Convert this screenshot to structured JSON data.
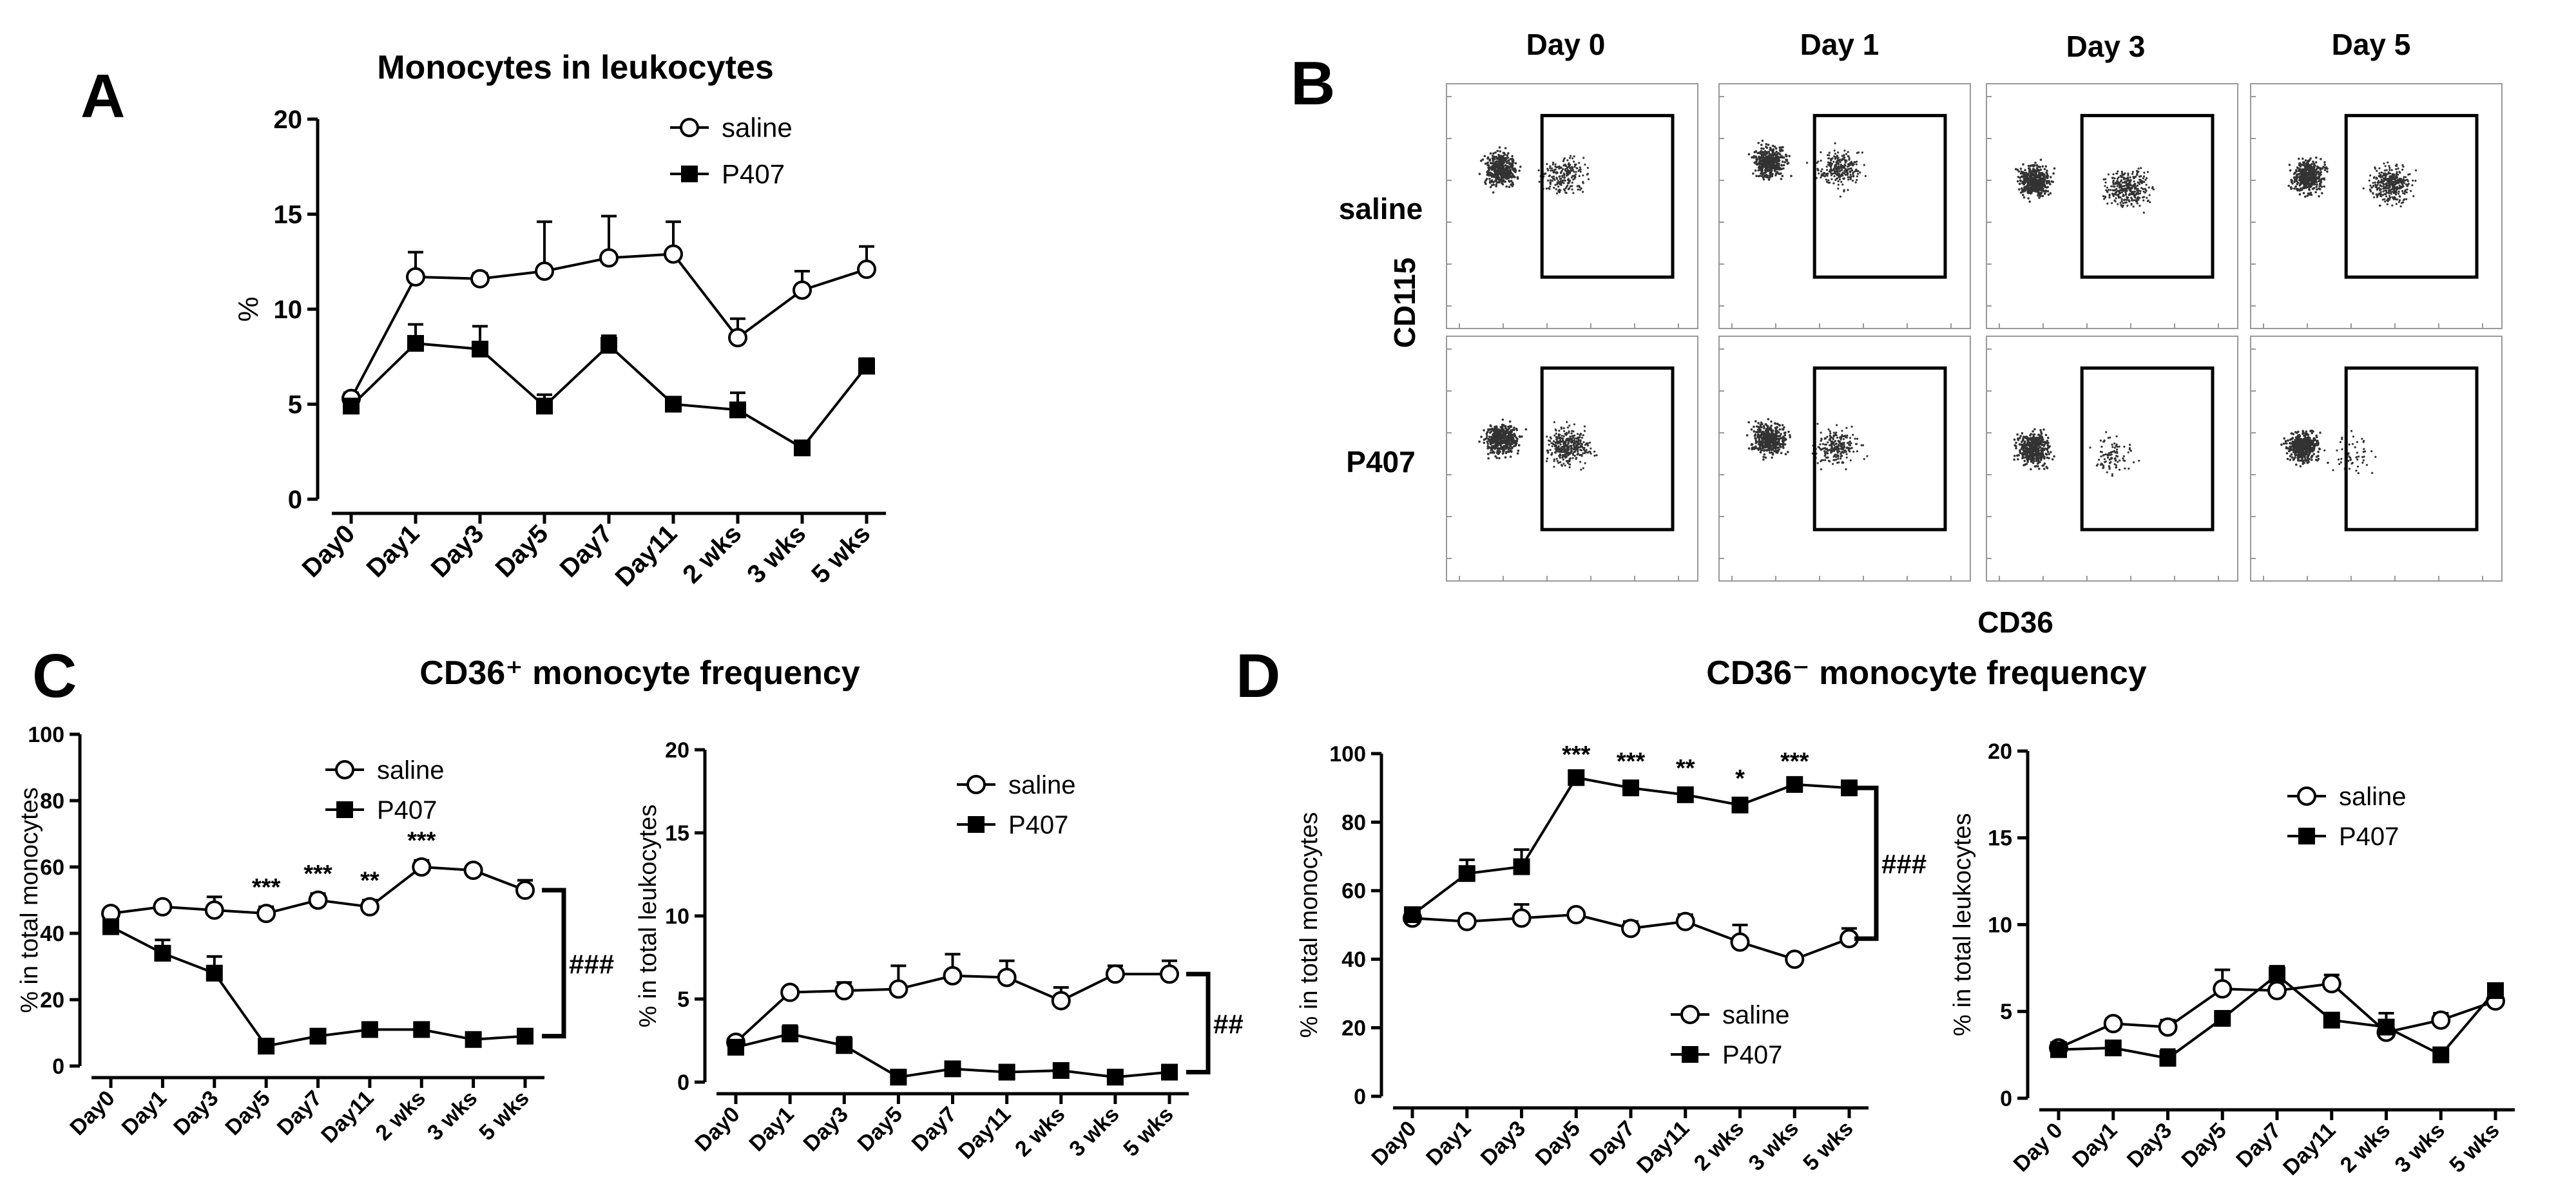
{
  "panel_labels": [
    "A",
    "B",
    "C",
    "D"
  ],
  "chart_data": [
    {
      "id": "A",
      "type": "line",
      "title": "Monocytes in leukocytes",
      "ylabel": "%",
      "xlabel": "",
      "categories": [
        "Day0",
        "Day1",
        "Day3",
        "Day5",
        "Day7",
        "Day11",
        "2 wks",
        "3 wks",
        "5 wks"
      ],
      "ylim": [
        0,
        20
      ],
      "yticks": [
        0,
        5,
        10,
        15,
        20
      ],
      "legend_position": "top-right",
      "series": [
        {
          "name": "saline",
          "marker": "open-circle",
          "values": [
            5.3,
            11.7,
            11.6,
            12.0,
            12.7,
            12.9,
            8.5,
            11.0,
            12.1
          ],
          "errors": [
            0.3,
            1.3,
            0.3,
            2.6,
            2.2,
            1.7,
            1.0,
            1.0,
            1.2
          ]
        },
        {
          "name": "P407",
          "marker": "filled-square",
          "values": [
            4.9,
            8.2,
            7.9,
            4.9,
            8.1,
            5.0,
            4.7,
            2.7,
            7.0
          ],
          "errors": [
            0.3,
            1.0,
            1.2,
            0.6,
            0.5,
            0.3,
            0.9,
            0.3,
            0.4
          ]
        }
      ]
    },
    {
      "id": "C1",
      "type": "line",
      "title": "CD36⁺ monocyte frequency",
      "ylabel": "% in total monocytes",
      "categories": [
        "Day0",
        "Day1",
        "Day3",
        "Day5",
        "Day7",
        "Day11",
        "2 wks",
        "3 wks",
        "5 wks"
      ],
      "ylim": [
        0,
        100
      ],
      "yticks": [
        0,
        20,
        40,
        60,
        80,
        100
      ],
      "legend_position": "top-right",
      "series": [
        {
          "name": "saline",
          "marker": "open-circle",
          "values": [
            46,
            48,
            47,
            46,
            50,
            48,
            60,
            59,
            53
          ],
          "errors": [
            1,
            1,
            4,
            2,
            2,
            2,
            2,
            1,
            3
          ]
        },
        {
          "name": "P407",
          "marker": "filled-square",
          "values": [
            42,
            34,
            28,
            6,
            9,
            11,
            11,
            8,
            9
          ],
          "errors": [
            2,
            4,
            5,
            1,
            2,
            2,
            2,
            1,
            1
          ]
        }
      ],
      "significance": [
        {
          "category": "Day5",
          "label": "***"
        },
        {
          "category": "Day7",
          "label": "***"
        },
        {
          "category": "Day11",
          "label": "**"
        },
        {
          "category": "2 wks",
          "label": "***"
        }
      ],
      "bracket_label": "###"
    },
    {
      "id": "C2",
      "type": "line",
      "ylabel": "% in total leukocytes",
      "categories": [
        "Day0",
        "Day1",
        "Day3",
        "Day5",
        "Day7",
        "Day11",
        "2 wks",
        "3 wks",
        "5 wks"
      ],
      "ylim": [
        0,
        20
      ],
      "yticks": [
        0,
        5,
        10,
        15,
        20
      ],
      "legend_position": "top-right",
      "series": [
        {
          "name": "saline",
          "marker": "open-circle",
          "values": [
            2.4,
            5.4,
            5.5,
            5.6,
            6.4,
            6.3,
            4.9,
            6.5,
            6.5
          ],
          "errors": [
            0.2,
            0.3,
            0.5,
            1.4,
            1.3,
            1.0,
            0.8,
            0.5,
            0.8
          ]
        },
        {
          "name": "P407",
          "marker": "filled-square",
          "values": [
            2.1,
            2.9,
            2.2,
            0.3,
            0.8,
            0.6,
            0.7,
            0.3,
            0.6
          ],
          "errors": [
            0.2,
            0.5,
            0.5,
            0.1,
            0.3,
            0.2,
            0.2,
            0.1,
            0.2
          ]
        }
      ],
      "bracket_label": "##"
    },
    {
      "id": "D1",
      "type": "line",
      "title": "CD36⁻ monocyte frequency",
      "ylabel": "% in total monocytes",
      "categories": [
        "Day0",
        "Day1",
        "Day3",
        "Day5",
        "Day7",
        "Day11",
        "2 wks",
        "3 wks",
        "5 wks"
      ],
      "ylim": [
        0,
        100
      ],
      "yticks": [
        0,
        20,
        40,
        60,
        80,
        100
      ],
      "legend_position": "bottom-right",
      "series": [
        {
          "name": "saline",
          "marker": "open-circle",
          "values": [
            52,
            51,
            52,
            53,
            49,
            51,
            45,
            40,
            46
          ],
          "errors": [
            1,
            1,
            4,
            1,
            2,
            2,
            5,
            1,
            3
          ]
        },
        {
          "name": "P407",
          "marker": "filled-square",
          "values": [
            53,
            65,
            67,
            93,
            90,
            88,
            85,
            91,
            90
          ],
          "errors": [
            2,
            4,
            5,
            1,
            2,
            2,
            2,
            1,
            1
          ]
        }
      ],
      "significance": [
        {
          "category": "Day5",
          "label": "***"
        },
        {
          "category": "Day7",
          "label": "***"
        },
        {
          "category": "Day11",
          "label": "**"
        },
        {
          "category": "2 wks",
          "label": "*"
        },
        {
          "category": "3 wks",
          "label": "***"
        }
      ],
      "bracket_label": "###"
    },
    {
      "id": "D2",
      "type": "line",
      "ylabel": "% in total leukocytes",
      "categories": [
        "Day 0",
        "Day1",
        "Day3",
        "Day5",
        "Day7",
        "Day11",
        "2 wks",
        "3 wks",
        "5 wks"
      ],
      "ylim": [
        0,
        20
      ],
      "yticks": [
        0,
        5,
        10,
        15,
        20
      ],
      "legend_position": "top-right",
      "series": [
        {
          "name": "saline",
          "marker": "open-circle",
          "values": [
            2.9,
            4.3,
            4.1,
            6.3,
            6.2,
            6.6,
            3.8,
            4.5,
            5.6
          ],
          "errors": [
            0.2,
            0.3,
            0.4,
            1.1,
            0.6,
            0.5,
            0.5,
            0.4,
            0.5
          ]
        },
        {
          "name": "P407",
          "marker": "filled-square",
          "values": [
            2.8,
            2.9,
            2.3,
            4.6,
            7.1,
            4.5,
            4.1,
            2.5,
            6.2
          ],
          "errors": [
            0.2,
            0.4,
            0.5,
            0.4,
            0.5,
            0.3,
            0.8,
            0.2,
            0.4
          ]
        }
      ]
    }
  ],
  "flow": {
    "columns": [
      "Day 0",
      "Day 1",
      "Day 3",
      "Day 5"
    ],
    "rows": [
      "saline",
      "P407"
    ],
    "y_axis_label": "CD115",
    "x_axis_label": "CD36",
    "populations": [
      [
        [
          0.22,
          0.35,
          0.47,
          0.24
        ],
        [
          0.2,
          0.32,
          0.48,
          0.28
        ],
        [
          0.19,
          0.4,
          0.56,
          0.35
        ],
        [
          0.23,
          0.38,
          0.56,
          0.38
        ]
      ],
      [
        [
          0.22,
          0.42,
          0.48,
          0.38
        ],
        [
          0.2,
          0.42,
          0.47,
          0.24
        ],
        [
          0.19,
          0.46,
          0.5,
          0.1
        ],
        [
          0.21,
          0.45,
          0.4,
          0.06
        ]
      ]
    ]
  }
}
